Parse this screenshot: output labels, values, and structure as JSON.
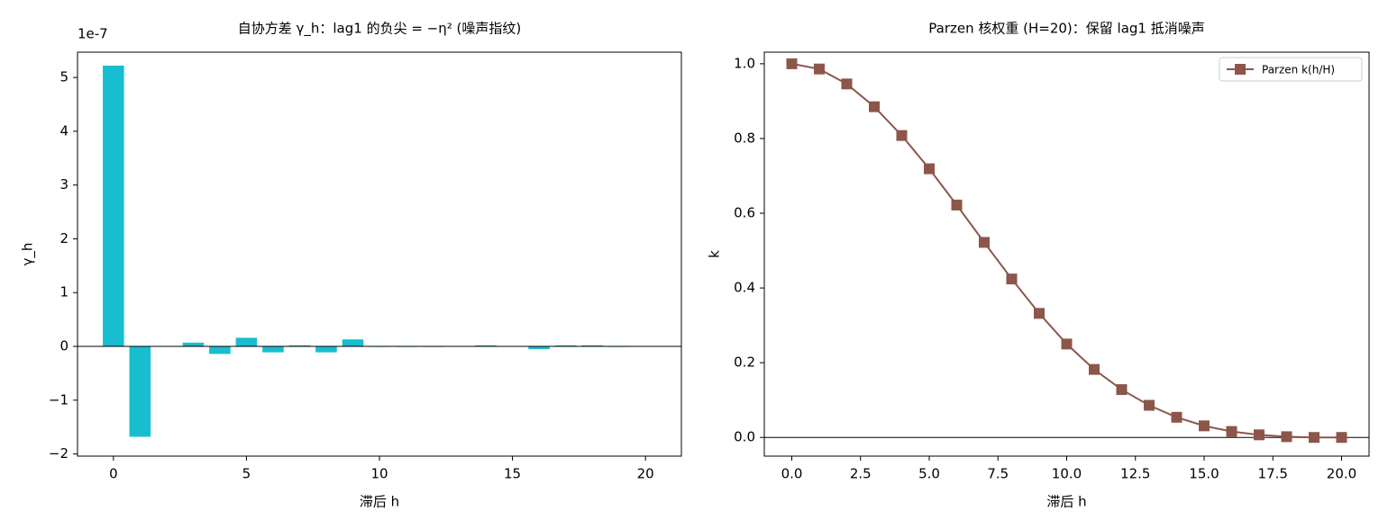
{
  "chart_data": [
    {
      "type": "bar",
      "title": "自协方差 γ_h：lag1 的负尖 = −η² (噪声指纹)",
      "x_label": "滞后 h",
      "y_label": "γ_h",
      "offset_label": "1e-7",
      "x": [
        0,
        1,
        2,
        3,
        4,
        5,
        6,
        7,
        8,
        9,
        10,
        11,
        12,
        13,
        14,
        15,
        16,
        17,
        18,
        19,
        20
      ],
      "values": [
        5.22,
        -1.68,
        0,
        0.07,
        -0.14,
        0.16,
        -0.11,
        0.02,
        -0.11,
        0.13,
        -0.01,
        -0.01,
        -0.01,
        0,
        0.02,
        0,
        -0.05,
        0.02,
        0.02,
        -0.01,
        0
      ],
      "color": "#17becf",
      "bar_width": 0.8,
      "hline": 0,
      "xlim": [
        -1.35,
        21.35
      ],
      "ylim": [
        -2.04,
        5.47
      ],
      "xticks": [
        0,
        5,
        10,
        15,
        20
      ],
      "yticks": [
        {
          "value": -2,
          "label": "−2"
        },
        {
          "value": -1,
          "label": "−1"
        },
        0,
        1,
        2,
        3,
        4,
        5
      ]
    },
    {
      "type": "line",
      "title": "Parzen 核权重 (H=20)：保留 lag1 抵消噪声",
      "x_label": "滞后 h",
      "y_label": "k",
      "x": [
        0,
        1,
        2,
        3,
        4,
        5,
        6,
        7,
        8,
        9,
        10,
        11,
        12,
        13,
        14,
        15,
        16,
        17,
        18,
        19,
        20
      ],
      "series": [
        {
          "name": "Parzen k(h/H)",
          "color": "#8c564b",
          "values": [
            1,
            0.986,
            0.946,
            0.885,
            0.808,
            0.719,
            0.622,
            0.522,
            0.424,
            0.332,
            0.25,
            0.182,
            0.128,
            0.086,
            0.054,
            0.031,
            0.016,
            0.007,
            0.002,
            0,
            0
          ]
        }
      ],
      "legend": "upper right",
      "hline": 0,
      "xlim": [
        -1,
        21
      ],
      "ylim": [
        -0.05,
        1.031
      ],
      "xticks": [
        {
          "value": 0,
          "label": "0.0"
        },
        {
          "value": 2.5,
          "label": "2.5"
        },
        {
          "value": 5,
          "label": "5.0"
        },
        {
          "value": 7.5,
          "label": "7.5"
        },
        {
          "value": 10,
          "label": "10.0"
        },
        {
          "value": 12.5,
          "label": "12.5"
        },
        {
          "value": 15,
          "label": "15.0"
        },
        {
          "value": 17.5,
          "label": "17.5"
        },
        {
          "value": 20,
          "label": "20.0"
        }
      ],
      "yticks": [
        {
          "value": 0,
          "label": "0.0"
        },
        {
          "value": 0.2,
          "label": "0.2"
        },
        {
          "value": 0.4,
          "label": "0.4"
        },
        {
          "value": 0.6,
          "label": "0.6"
        },
        {
          "value": 0.8,
          "label": "0.8"
        },
        {
          "value": 1,
          "label": "1.0"
        }
      ]
    }
  ]
}
